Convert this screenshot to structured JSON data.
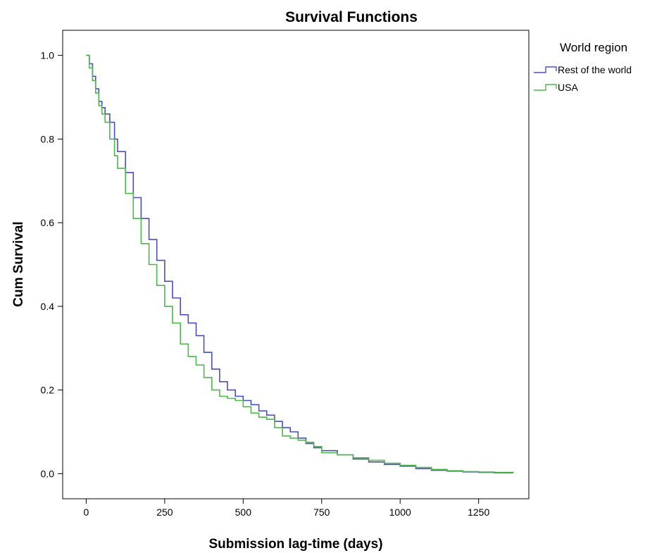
{
  "chart_data": {
    "type": "line",
    "title": "Survival Functions",
    "xlabel": "Submission lag-time (days)",
    "ylabel": "Cum Survival",
    "xlim": [
      -75,
      1410
    ],
    "ylim": [
      -0.06,
      1.06
    ],
    "xticks": [
      0,
      250,
      500,
      750,
      1000,
      1250
    ],
    "yticks": [
      0.0,
      0.2,
      0.4,
      0.6,
      0.8,
      1.0
    ],
    "xtick_labels": [
      "0",
      "250",
      "500",
      "750",
      "1000",
      "1250"
    ],
    "ytick_labels": [
      "0.0",
      "0.2",
      "0.4",
      "0.6",
      "0.8",
      "1.0"
    ],
    "grid": false,
    "step": true,
    "legend": {
      "title": "World region",
      "position": "right-outside-top"
    },
    "series": [
      {
        "name": "Rest of the world",
        "color": "#4a4fbf",
        "x": [
          0,
          10,
          20,
          30,
          40,
          50,
          60,
          75,
          90,
          100,
          125,
          150,
          175,
          200,
          225,
          250,
          275,
          300,
          325,
          350,
          375,
          400,
          425,
          450,
          475,
          500,
          525,
          550,
          575,
          600,
          625,
          650,
          675,
          700,
          725,
          750,
          800,
          850,
          900,
          950,
          1000,
          1050,
          1100,
          1150,
          1200,
          1250,
          1300,
          1360
        ],
        "y": [
          1.0,
          0.98,
          0.95,
          0.92,
          0.89,
          0.875,
          0.86,
          0.84,
          0.8,
          0.77,
          0.72,
          0.66,
          0.61,
          0.56,
          0.51,
          0.46,
          0.42,
          0.38,
          0.36,
          0.33,
          0.29,
          0.25,
          0.22,
          0.2,
          0.185,
          0.175,
          0.165,
          0.15,
          0.14,
          0.125,
          0.11,
          0.1,
          0.085,
          0.072,
          0.062,
          0.055,
          0.045,
          0.035,
          0.028,
          0.022,
          0.018,
          0.012,
          0.008,
          0.006,
          0.004,
          0.003,
          0.002,
          0.002
        ]
      },
      {
        "name": "USA",
        "color": "#4cb84c",
        "x": [
          0,
          10,
          20,
          30,
          40,
          50,
          60,
          75,
          90,
          100,
          125,
          150,
          175,
          200,
          225,
          250,
          275,
          300,
          325,
          350,
          375,
          400,
          425,
          450,
          475,
          500,
          525,
          550,
          575,
          600,
          625,
          650,
          675,
          700,
          725,
          750,
          800,
          850,
          900,
          950,
          1000,
          1050,
          1100,
          1150,
          1200,
          1250,
          1300,
          1360
        ],
        "y": [
          1.0,
          0.97,
          0.94,
          0.91,
          0.88,
          0.86,
          0.84,
          0.8,
          0.76,
          0.73,
          0.67,
          0.61,
          0.55,
          0.5,
          0.45,
          0.4,
          0.36,
          0.31,
          0.28,
          0.26,
          0.23,
          0.2,
          0.185,
          0.18,
          0.175,
          0.16,
          0.145,
          0.135,
          0.13,
          0.11,
          0.09,
          0.085,
          0.08,
          0.075,
          0.065,
          0.05,
          0.045,
          0.038,
          0.032,
          0.025,
          0.02,
          0.015,
          0.01,
          0.007,
          0.005,
          0.004,
          0.003,
          0.002
        ]
      }
    ]
  }
}
